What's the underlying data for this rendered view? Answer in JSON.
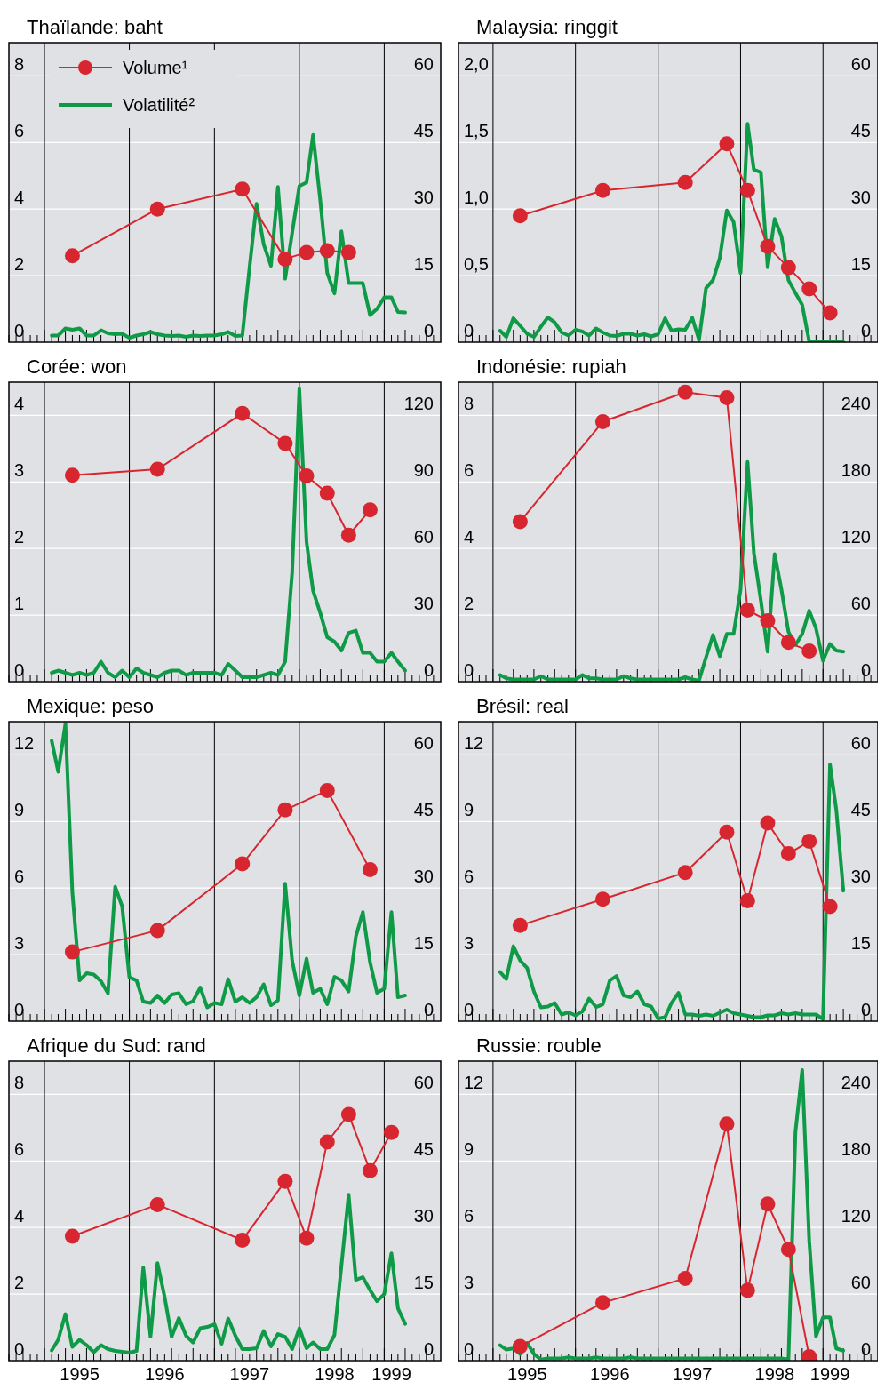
{
  "chart_data": [
    {
      "type": "line",
      "title": "Thaïlande: baht",
      "xlim": [
        "1994-08-01",
        "1999-09-01"
      ],
      "ylim": [
        0,
        9
      ],
      "y2lim": [
        0,
        67.5
      ],
      "yticks": [
        0,
        2,
        4,
        6,
        8
      ],
      "y2ticks": [
        0,
        15,
        30,
        45,
        60
      ],
      "xticks": [
        {
          "value": "1995-01",
          "label": null
        },
        {
          "value": "1996-01",
          "label": null
        },
        {
          "value": "1997-01",
          "label": null
        },
        {
          "value": "1998-01",
          "label": null
        },
        {
          "value": "1999-01",
          "label": null
        }
      ],
      "tick_labels": "y",
      "grid": true,
      "legend": "top left",
      "x": [
        "1995-02",
        "1995-03",
        "1995-04",
        "1995-05",
        "1995-06",
        "1995-07",
        "1995-08",
        "1995-09",
        "1995-10",
        "1995-11",
        "1995-12",
        "1996-01",
        "1996-02",
        "1996-03",
        "1996-04",
        "1996-05",
        "1996-06",
        "1996-07",
        "1996-08",
        "1996-09",
        "1996-10",
        "1996-11",
        "1996-12",
        "1997-01",
        "1997-02",
        "1997-03",
        "1997-04",
        "1997-05",
        "1997-06",
        "1997-07",
        "1997-08",
        "1997-09",
        "1997-10",
        "1997-11",
        "1997-12",
        "1998-01",
        "1998-02",
        "1998-03",
        "1998-04",
        "1998-05",
        "1998-06",
        "1998-07",
        "1998-08",
        "1998-09",
        "1998-10",
        "1998-11",
        "1998-12",
        "1999-01",
        "1999-02",
        "1999-03",
        "1999-04"
      ],
      "series": [
        {
          "name": "Volume¹",
          "color": "#d7262f",
          "marker": "circle",
          "x": [
            "1995-05",
            "1996-05",
            "1997-05",
            "1997-11",
            "1998-02",
            "1998-05",
            "1998-08"
          ],
          "values": [
            2.6,
            4.0,
            4.6,
            2.5,
            2.7,
            2.75,
            2.7
          ]
        },
        {
          "name": "Volatilité²",
          "color": "#0e9a47",
          "axis": "y2",
          "marker": "none",
          "values": [
            1.5,
            1.5,
            3.1,
            2.8,
            3.1,
            1.5,
            1.5,
            2.7,
            2,
            1.8,
            1.9,
            1,
            1.5,
            1.8,
            2.3,
            1.8,
            1.5,
            1.4,
            1.5,
            1.2,
            1.5,
            1.4,
            1.5,
            1.5,
            1.8,
            2.3,
            1.4,
            1.5,
            16.9,
            31.2,
            22,
            17.2,
            35,
            14.3,
            24.6,
            35.2,
            36,
            46.7,
            32,
            15.6,
            11,
            25,
            13.3,
            13.3,
            13.3,
            6.1,
            7.5,
            10.1,
            10.1,
            6.8,
            6.7
          ]
        }
      ]
    },
    {
      "type": "line",
      "title": "Malaysia: ringgit",
      "xlim": [
        "1994-08-01",
        "1999-09-01"
      ],
      "ylim": [
        0,
        2.25
      ],
      "y2lim": [
        0,
        67.5
      ],
      "yticks": [
        0,
        {
          "value": 0.5,
          "label": "0,5"
        },
        {
          "value": 1,
          "label": "1,0"
        },
        {
          "value": 1.5,
          "label": "1,5"
        },
        {
          "value": 2,
          "label": "2,0"
        }
      ],
      "y2ticks": [
        0,
        15,
        30,
        45,
        60
      ],
      "xticks": [
        {
          "value": "1995-01",
          "label": null
        },
        {
          "value": "1996-01",
          "label": null
        },
        {
          "value": "1997-01",
          "label": null
        },
        {
          "value": "1998-01",
          "label": null
        },
        {
          "value": "1999-01",
          "label": null
        }
      ],
      "tick_labels": "y",
      "grid": true,
      "x": [
        "1995-02",
        "1995-03",
        "1995-04",
        "1995-05",
        "1995-06",
        "1995-07",
        "1995-08",
        "1995-09",
        "1995-10",
        "1995-11",
        "1995-12",
        "1996-01",
        "1996-02",
        "1996-03",
        "1996-04",
        "1996-05",
        "1996-06",
        "1996-07",
        "1996-08",
        "1996-09",
        "1996-10",
        "1996-11",
        "1996-12",
        "1997-01",
        "1997-02",
        "1997-03",
        "1997-04",
        "1997-05",
        "1997-06",
        "1997-07",
        "1997-08",
        "1997-09",
        "1997-10",
        "1997-11",
        "1997-12",
        "1998-01",
        "1998-02",
        "1998-03",
        "1998-04",
        "1998-05",
        "1998-06",
        "1998-07",
        "1998-08",
        "1998-09",
        "1998-10",
        "1998-11",
        "1998-12",
        "1999-01",
        "1999-02",
        "1999-03",
        "1999-04"
      ],
      "series": [
        {
          "color": "#d7262f",
          "marker": "circle",
          "x": [
            "1995-05",
            "1996-05",
            "1997-05",
            "1997-11",
            "1998-02",
            "1998-05",
            "1998-08",
            "1998-11",
            "1999-02"
          ],
          "values": [
            0.95,
            1.14,
            1.2,
            1.49,
            1.14,
            0.72,
            0.56,
            0.4,
            0.22
          ]
        },
        {
          "color": "#0e9a47",
          "axis": "y2",
          "marker": "none",
          "values": [
            2.6,
            1.2,
            5.4,
            3.7,
            1.9,
            1.2,
            3.5,
            5.6,
            4.5,
            2.2,
            1.5,
            2.8,
            2.4,
            1.5,
            3.1,
            2.2,
            1.5,
            1.4,
            1.9,
            1.9,
            1.5,
            1.8,
            1.3,
            1.8,
            5.4,
            2.6,
            2.9,
            2.8,
            5.5,
            0.5,
            12.2,
            14,
            19,
            29.7,
            27.1,
            15.6,
            49.2,
            38.9,
            38.3,
            16.9,
            27.8,
            23.9,
            14,
            11.1,
            8.4,
            0.1,
            0,
            0,
            0,
            0,
            0
          ]
        }
      ]
    },
    {
      "type": "line",
      "title": "Corée: won",
      "xlim": [
        "1994-08-01",
        "1999-09-01"
      ],
      "ylim": [
        0,
        4.5
      ],
      "y2lim": [
        0,
        135
      ],
      "yticks": [
        0,
        1,
        2,
        3,
        4
      ],
      "y2ticks": [
        0,
        30,
        60,
        90,
        120
      ],
      "xticks": [
        {
          "value": "1995-01",
          "label": null
        },
        {
          "value": "1996-01",
          "label": null
        },
        {
          "value": "1997-01",
          "label": null
        },
        {
          "value": "1998-01",
          "label": null
        },
        {
          "value": "1999-01",
          "label": null
        }
      ],
      "tick_labels": "y",
      "grid": true,
      "x": [
        "1995-02",
        "1995-03",
        "1995-04",
        "1995-05",
        "1995-06",
        "1995-07",
        "1995-08",
        "1995-09",
        "1995-10",
        "1995-11",
        "1995-12",
        "1996-01",
        "1996-02",
        "1996-03",
        "1996-04",
        "1996-05",
        "1996-06",
        "1996-07",
        "1996-08",
        "1996-09",
        "1996-10",
        "1996-11",
        "1996-12",
        "1997-01",
        "1997-02",
        "1997-03",
        "1997-04",
        "1997-05",
        "1997-06",
        "1997-07",
        "1997-08",
        "1997-09",
        "1997-10",
        "1997-11",
        "1997-12",
        "1998-01",
        "1998-02",
        "1998-03",
        "1998-04",
        "1998-05",
        "1998-06",
        "1998-07",
        "1998-08",
        "1998-09",
        "1998-10",
        "1998-11",
        "1998-12",
        "1999-01",
        "1999-02",
        "1999-03",
        "1999-04"
      ],
      "series": [
        {
          "color": "#d7262f",
          "marker": "circle",
          "x": [
            "1995-05",
            "1996-05",
            "1997-05",
            "1997-11",
            "1998-02",
            "1998-05",
            "1998-08",
            "1998-11"
          ],
          "values": [
            3.1,
            3.19,
            4.03,
            3.58,
            3.09,
            2.83,
            2.2,
            2.58
          ]
        },
        {
          "color": "#0e9a47",
          "axis": "y2",
          "marker": "none",
          "values": [
            4,
            5,
            4,
            3,
            4,
            3,
            4,
            9,
            4,
            2,
            5,
            2,
            6,
            4,
            3,
            2,
            4,
            5,
            5,
            3,
            4,
            4,
            4,
            4,
            3,
            8,
            5,
            2,
            2,
            2,
            3,
            4,
            3,
            9,
            49,
            132,
            63,
            41,
            31,
            20,
            18,
            14,
            22,
            23,
            13,
            13,
            9,
            9,
            13,
            9,
            5
          ]
        }
      ]
    },
    {
      "type": "line",
      "title": "Indonésie: rupiah",
      "xlim": [
        "1994-08-01",
        "1999-09-01"
      ],
      "ylim": [
        0,
        9
      ],
      "y2lim": [
        0,
        270
      ],
      "yticks": [
        0,
        2,
        4,
        6,
        8
      ],
      "y2ticks": [
        0,
        60,
        120,
        180,
        240
      ],
      "xticks": [
        {
          "value": "1995-01",
          "label": null
        },
        {
          "value": "1996-01",
          "label": null
        },
        {
          "value": "1997-01",
          "label": null
        },
        {
          "value": "1998-01",
          "label": null
        },
        {
          "value": "1999-01",
          "label": null
        }
      ],
      "tick_labels": "y",
      "grid": true,
      "x": [
        "1995-02",
        "1995-03",
        "1995-04",
        "1995-05",
        "1995-06",
        "1995-07",
        "1995-08",
        "1995-09",
        "1995-10",
        "1995-11",
        "1995-12",
        "1996-01",
        "1996-02",
        "1996-03",
        "1996-04",
        "1996-05",
        "1996-06",
        "1996-07",
        "1996-08",
        "1996-09",
        "1996-10",
        "1996-11",
        "1996-12",
        "1997-01",
        "1997-02",
        "1997-03",
        "1997-04",
        "1997-05",
        "1997-06",
        "1997-07",
        "1997-08",
        "1997-09",
        "1997-10",
        "1997-11",
        "1997-12",
        "1998-01",
        "1998-02",
        "1998-03",
        "1998-04",
        "1998-05",
        "1998-06",
        "1998-07",
        "1998-08",
        "1998-09",
        "1998-10",
        "1998-11",
        "1998-12",
        "1999-01",
        "1999-02",
        "1999-03",
        "1999-04"
      ],
      "series": [
        {
          "color": "#d7262f",
          "marker": "circle",
          "x": [
            "1995-05",
            "1996-05",
            "1997-05",
            "1997-11",
            "1998-02",
            "1998-05",
            "1998-08",
            "1998-11"
          ],
          "values": [
            4.81,
            7.81,
            8.7,
            8.53,
            2.15,
            1.83,
            1.18,
            0.92
          ]
        },
        {
          "color": "#0e9a47",
          "axis": "y2",
          "marker": "none",
          "values": [
            6,
            3,
            2,
            2,
            2,
            2,
            5,
            2,
            2,
            2,
            2,
            2,
            6,
            3,
            3,
            2,
            2,
            2,
            5,
            3,
            2,
            2,
            2,
            2,
            2,
            2,
            2,
            4,
            2,
            1,
            22,
            42,
            23,
            43,
            43,
            83,
            198,
            116,
            73,
            27,
            115,
            83,
            45,
            33,
            43,
            64,
            48,
            19,
            34,
            28,
            27
          ]
        }
      ]
    },
    {
      "type": "line",
      "title": "Mexique: peso",
      "xlim": [
        "1994-08-01",
        "1999-09-01"
      ],
      "ylim": [
        0,
        13.5
      ],
      "y2lim": [
        0,
        67.5
      ],
      "yticks": [
        0,
        3,
        6,
        9,
        12
      ],
      "y2ticks": [
        0,
        15,
        30,
        45,
        60
      ],
      "xticks": [
        {
          "value": "1995-01",
          "label": null
        },
        {
          "value": "1996-01",
          "label": null
        },
        {
          "value": "1997-01",
          "label": null
        },
        {
          "value": "1998-01",
          "label": null
        },
        {
          "value": "1999-01",
          "label": null
        }
      ],
      "tick_labels": "y",
      "grid": true,
      "x": [
        "1995-02",
        "1995-03",
        "1995-04",
        "1995-05",
        "1995-06",
        "1995-07",
        "1995-08",
        "1995-09",
        "1995-10",
        "1995-11",
        "1995-12",
        "1996-01",
        "1996-02",
        "1996-03",
        "1996-04",
        "1996-05",
        "1996-06",
        "1996-07",
        "1996-08",
        "1996-09",
        "1996-10",
        "1996-11",
        "1996-12",
        "1997-01",
        "1997-02",
        "1997-03",
        "1997-04",
        "1997-05",
        "1997-06",
        "1997-07",
        "1997-08",
        "1997-09",
        "1997-10",
        "1997-11",
        "1997-12",
        "1998-01",
        "1998-02",
        "1998-03",
        "1998-04",
        "1998-05",
        "1998-06",
        "1998-07",
        "1998-08",
        "1998-09",
        "1998-10",
        "1998-11",
        "1998-12",
        "1999-01",
        "1999-02",
        "1999-03",
        "1999-04"
      ],
      "series": [
        {
          "color": "#d7262f",
          "marker": "circle",
          "x": [
            "1995-05",
            "1996-05",
            "1997-05",
            "1997-11",
            "1998-05",
            "1998-11"
          ],
          "values": [
            3.12,
            4.09,
            7.09,
            9.52,
            10.4,
            6.83
          ]
        },
        {
          "color": "#0e9a47",
          "axis": "y2",
          "marker": "none",
          "values": [
            63.2,
            56.2,
            67,
            29,
            9.2,
            10.8,
            10.5,
            9,
            6.3,
            30.3,
            25.9,
            9.9,
            9.2,
            4.4,
            4.1,
            5.8,
            4.1,
            6,
            6.3,
            3.8,
            4.5,
            7.6,
            3.1,
            4.1,
            3.8,
            9.5,
            4.4,
            5.4,
            4.1,
            5.4,
            8.3,
            3.6,
            4.7,
            31,
            13.7,
            5.8,
            14.1,
            6.4,
            7.3,
            3.8,
            10,
            9.2,
            6.7,
            19.1,
            24.6,
            13.3,
            6.4,
            7.3,
            24.6,
            5.4,
            5.8
          ]
        }
      ]
    },
    {
      "type": "line",
      "title": "Brésil: real",
      "xlim": [
        "1994-08-01",
        "1999-09-01"
      ],
      "ylim": [
        0,
        13.5
      ],
      "y2lim": [
        0,
        67.5
      ],
      "yticks": [
        0,
        3,
        6,
        9,
        12
      ],
      "y2ticks": [
        0,
        15,
        30,
        45,
        60
      ],
      "xticks": [
        {
          "value": "1995-01",
          "label": null
        },
        {
          "value": "1996-01",
          "label": null
        },
        {
          "value": "1997-01",
          "label": null
        },
        {
          "value": "1998-01",
          "label": null
        },
        {
          "value": "1999-01",
          "label": null
        }
      ],
      "tick_labels": "y",
      "grid": true,
      "x": [
        "1995-02",
        "1995-03",
        "1995-04",
        "1995-05",
        "1995-06",
        "1995-07",
        "1995-08",
        "1995-09",
        "1995-10",
        "1995-11",
        "1995-12",
        "1996-01",
        "1996-02",
        "1996-03",
        "1996-04",
        "1996-05",
        "1996-06",
        "1996-07",
        "1996-08",
        "1996-09",
        "1996-10",
        "1996-11",
        "1996-12",
        "1997-01",
        "1997-02",
        "1997-03",
        "1997-04",
        "1997-05",
        "1997-06",
        "1997-07",
        "1997-08",
        "1997-09",
        "1997-10",
        "1997-11",
        "1997-12",
        "1998-01",
        "1998-02",
        "1998-03",
        "1998-04",
        "1998-05",
        "1998-06",
        "1998-07",
        "1998-08",
        "1998-09",
        "1998-10",
        "1998-11",
        "1998-12",
        "1999-01",
        "1999-02",
        "1999-03",
        "1999-04"
      ],
      "series": [
        {
          "color": "#d7262f",
          "marker": "circle",
          "x": [
            "1995-05",
            "1996-05",
            "1997-05",
            "1997-11",
            "1998-02",
            "1998-05",
            "1998-08",
            "1998-11",
            "1999-02"
          ],
          "values": [
            4.32,
            5.5,
            6.7,
            8.52,
            5.43,
            8.93,
            7.55,
            8.11,
            5.17
          ]
        },
        {
          "color": "#0e9a47",
          "axis": "y2",
          "marker": "none",
          "values": [
            11.1,
            9.5,
            16.9,
            13.7,
            12,
            6.7,
            3.1,
            3.3,
            4.1,
            1.5,
            2,
            1.3,
            2.2,
            5.1,
            3.2,
            3.8,
            9.2,
            10.2,
            5.8,
            5.4,
            6.7,
            3.8,
            3.3,
            0.6,
            0.9,
            4.1,
            6.4,
            1.5,
            1.5,
            1.2,
            1.5,
            1.2,
            1.9,
            2.6,
            1.8,
            1.5,
            1.2,
            0.9,
            0.9,
            1.3,
            1.3,
            1.8,
            1.5,
            1.8,
            1.5,
            1.5,
            1.5,
            0.5,
            57.9,
            47.6,
            29.4
          ]
        }
      ]
    },
    {
      "type": "line",
      "title": "Afrique du Sud: rand",
      "xlim": [
        "1994-08-01",
        "1999-09-01"
      ],
      "ylim": [
        0,
        9
      ],
      "y2lim": [
        0,
        67.5
      ],
      "yticks": [
        0,
        2,
        4,
        6,
        8
      ],
      "y2ticks": [
        0,
        15,
        30,
        45,
        60
      ],
      "xticks": [
        {
          "value": "1995-01",
          "label": null
        },
        {
          "value": "1996-01",
          "label": null
        },
        {
          "value": "1997-01",
          "label": null
        },
        {
          "value": "1998-01",
          "label": null
        },
        {
          "value": "1999-01",
          "label": null
        },
        {
          "value": "1995-06",
          "label": "1995"
        },
        {
          "value": "1996-06",
          "label": "1996"
        },
        {
          "value": "1997-06",
          "label": "1997"
        },
        {
          "value": "1998-06",
          "label": "1998"
        },
        {
          "value": "1999-02",
          "label": "1999"
        }
      ],
      "grid": true,
      "x": [
        "1995-02",
        "1995-03",
        "1995-04",
        "1995-05",
        "1995-06",
        "1995-07",
        "1995-08",
        "1995-09",
        "1995-10",
        "1995-11",
        "1995-12",
        "1996-01",
        "1996-02",
        "1996-03",
        "1996-04",
        "1996-05",
        "1996-06",
        "1996-07",
        "1996-08",
        "1996-09",
        "1996-10",
        "1996-11",
        "1996-12",
        "1997-01",
        "1997-02",
        "1997-03",
        "1997-04",
        "1997-05",
        "1997-06",
        "1997-07",
        "1997-08",
        "1997-09",
        "1997-10",
        "1997-11",
        "1997-12",
        "1998-01",
        "1998-02",
        "1998-03",
        "1998-04",
        "1998-05",
        "1998-06",
        "1998-07",
        "1998-08",
        "1998-09",
        "1998-10",
        "1998-11",
        "1998-12",
        "1999-01",
        "1999-02",
        "1999-03",
        "1999-04"
      ],
      "series": [
        {
          "color": "#d7262f",
          "marker": "circle",
          "x": [
            "1995-05",
            "1996-05",
            "1997-05",
            "1997-11",
            "1998-02",
            "1998-05",
            "1998-08",
            "1998-11",
            "1999-02"
          ],
          "values": [
            3.74,
            4.69,
            3.62,
            5.39,
            3.68,
            6.57,
            7.4,
            5.71,
            6.86
          ]
        },
        {
          "color": "#0e9a47",
          "axis": "y2",
          "marker": "none",
          "values": [
            2.3,
            4.7,
            10.5,
            3.1,
            4.7,
            3.5,
            1.9,
            3.5,
            2.6,
            2.2,
            2,
            1.8,
            2.2,
            21,
            5.4,
            22,
            14.3,
            5.4,
            9.6,
            5.6,
            4.1,
            7.3,
            7.6,
            8.2,
            3.8,
            9.5,
            5.6,
            2.6,
            2.6,
            2.8,
            6.7,
            3.2,
            6,
            5.4,
            2.6,
            7.3,
            2.8,
            4.1,
            2.6,
            2.6,
            5.8,
            21.4,
            37.4,
            18.2,
            18.8,
            15.9,
            13.4,
            15,
            24.2,
            11.8,
            8.3
          ]
        }
      ]
    },
    {
      "type": "line",
      "title": "Russie: rouble",
      "xlim": [
        "1994-08-01",
        "1999-09-01"
      ],
      "ylim": [
        0,
        13.5
      ],
      "y2lim": [
        0,
        270
      ],
      "yticks": [
        0,
        3,
        6,
        9,
        12
      ],
      "y2ticks": [
        0,
        60,
        120,
        180,
        240
      ],
      "xticks": [
        {
          "value": "1995-01",
          "label": null
        },
        {
          "value": "1996-01",
          "label": null
        },
        {
          "value": "1997-01",
          "label": null
        },
        {
          "value": "1998-01",
          "label": null
        },
        {
          "value": "1999-01",
          "label": null
        },
        {
          "value": "1995-06",
          "label": "1995"
        },
        {
          "value": "1996-06",
          "label": "1996"
        },
        {
          "value": "1997-06",
          "label": "1997"
        },
        {
          "value": "1998-06",
          "label": "1998"
        },
        {
          "value": "1999-02",
          "label": "1999"
        }
      ],
      "grid": true,
      "x": [
        "1995-02",
        "1995-03",
        "1995-04",
        "1995-05",
        "1995-06",
        "1995-07",
        "1995-08",
        "1995-09",
        "1995-10",
        "1995-11",
        "1995-12",
        "1996-01",
        "1996-02",
        "1996-03",
        "1996-04",
        "1996-05",
        "1996-06",
        "1996-07",
        "1996-08",
        "1996-09",
        "1996-10",
        "1996-11",
        "1996-12",
        "1997-01",
        "1997-02",
        "1997-03",
        "1997-04",
        "1997-05",
        "1997-06",
        "1997-07",
        "1997-08",
        "1997-09",
        "1997-10",
        "1997-11",
        "1997-12",
        "1998-01",
        "1998-02",
        "1998-03",
        "1998-04",
        "1998-05",
        "1998-06",
        "1998-07",
        "1998-08",
        "1998-09",
        "1998-10",
        "1998-11",
        "1998-12",
        "1999-01",
        "1999-02",
        "1999-03",
        "1999-04"
      ],
      "series": [
        {
          "color": "#d7262f",
          "marker": "circle",
          "x": [
            "1995-05",
            "1996-05",
            "1997-05",
            "1997-11",
            "1998-02",
            "1998-05",
            "1998-08",
            "1998-11"
          ],
          "values": [
            0.64,
            2.61,
            3.71,
            10.67,
            3.17,
            7.06,
            5.02,
            0.18
          ]
        },
        {
          "color": "#0e9a47",
          "axis": "y2",
          "marker": "none",
          "values": [
            14,
            10,
            11,
            6,
            16,
            6,
            1,
            2,
            2,
            2,
            3,
            2,
            2,
            2,
            3,
            2,
            2,
            2,
            2,
            3,
            2,
            2,
            2,
            2,
            2,
            2,
            2,
            2,
            2,
            2,
            2,
            2,
            2,
            2,
            2,
            2,
            2,
            2,
            2,
            2,
            2,
            2,
            1,
            206,
            262,
            108,
            22,
            39,
            39,
            11,
            9
          ]
        }
      ]
    }
  ]
}
